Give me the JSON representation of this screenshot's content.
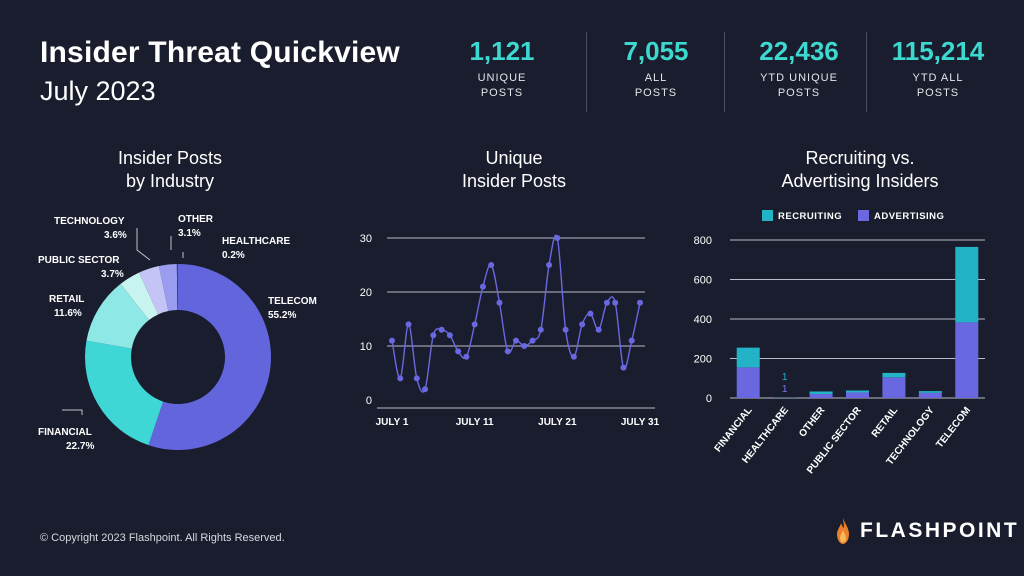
{
  "header": {
    "title": "Insider Threat Quickview",
    "subtitle": "July 2023"
  },
  "stats": [
    {
      "value": "1,121",
      "label1": "UNIQUE",
      "label2": "POSTS"
    },
    {
      "value": "7,055",
      "label1": "ALL",
      "label2": "POSTS"
    },
    {
      "value": "22,436",
      "label1": "YTD UNIQUE",
      "label2": "POSTS"
    },
    {
      "value": "115,214",
      "label1": "YTD ALL",
      "label2": "POSTS"
    }
  ],
  "panels": {
    "industry": {
      "title1": "Insider Posts",
      "title2": "by Industry"
    },
    "unique": {
      "title1": "Unique",
      "title2": "Insider Posts"
    },
    "recruit": {
      "title1": "Recruiting vs.",
      "title2": "Advertising Insiders"
    }
  },
  "colors": {
    "accent": "#3dd9d0",
    "background": "#1a1d2e",
    "series": "#6a68e0",
    "recruiting": "#22b3c7"
  },
  "chart_data": [
    {
      "type": "pie",
      "title": "Insider Posts by Industry",
      "donut": true,
      "slices": [
        {
          "label": "TELECOM",
          "pct_label": "55.2%",
          "value": 55.2,
          "color": "#6265dc"
        },
        {
          "label": "FINANCIAL",
          "pct_label": "22.7%",
          "value": 22.7,
          "color": "#3fd6d6"
        },
        {
          "label": "RETAIL",
          "pct_label": "11.6%",
          "value": 11.6,
          "color": "#8ee8e6"
        },
        {
          "label": "PUBLIC SECTOR",
          "pct_label": "3.7%",
          "value": 3.7,
          "color": "#c8f4f0"
        },
        {
          "label": "TECHNOLOGY",
          "pct_label": "3.6%",
          "value": 3.6,
          "color": "#c4c4f6"
        },
        {
          "label": "OTHER",
          "pct_label": "3.1%",
          "value": 3.1,
          "color": "#9a9cf0"
        },
        {
          "label": "HEALTHCARE",
          "pct_label": "0.2%",
          "value": 0.2,
          "color": "#3a3c9a"
        }
      ]
    },
    {
      "type": "line",
      "title": "Unique Insider Posts",
      "x": [
        "1",
        "2",
        "3",
        "4",
        "5",
        "6",
        "7",
        "8",
        "9",
        "10",
        "11",
        "12",
        "13",
        "14",
        "15",
        "16",
        "17",
        "18",
        "19",
        "20",
        "21",
        "22",
        "23",
        "24",
        "25",
        "26",
        "27",
        "28",
        "29",
        "30",
        "31"
      ],
      "xticks": [
        "JULY 1",
        "JULY 11",
        "JULY 21",
        "JULY 31"
      ],
      "xtick_days": [
        1,
        11,
        21,
        31
      ],
      "values": [
        11,
        4,
        14,
        4,
        2,
        12,
        13,
        12,
        9,
        8,
        14,
        21,
        25,
        18,
        9,
        11,
        10,
        11,
        13,
        25,
        30,
        13,
        8,
        14,
        16,
        13,
        18,
        18,
        6,
        11,
        18
      ],
      "yticks": [
        0,
        10,
        20,
        30
      ],
      "ylim": [
        0,
        30
      ],
      "grid": true,
      "color": "#6a68e0"
    },
    {
      "type": "bar",
      "stacked": true,
      "title": "Recruiting vs. Advertising Insiders",
      "categories": [
        "FINANCIAL",
        "HEALTHCARE",
        "OTHER",
        "PUBLIC SECTOR",
        "RETAIL",
        "TECHNOLOGY",
        "TELECOM"
      ],
      "series": [
        {
          "name": "ADVERTISING",
          "color": "#6a68e0",
          "values": [
            155,
            1,
            20,
            28,
            105,
            26,
            383
          ]
        },
        {
          "name": "RECRUITING",
          "color": "#22b3c7",
          "values": [
            100,
            1,
            13,
            10,
            22,
            9,
            382
          ]
        }
      ],
      "legend": [
        {
          "name": "RECRUITING",
          "color": "#22b3c7"
        },
        {
          "name": "ADVERTISING",
          "color": "#6a68e0"
        }
      ],
      "data_labels": {
        "HEALTHCARE": {
          "RECRUITING": "1",
          "ADVERTISING": "1"
        }
      },
      "yticks": [
        0,
        200,
        400,
        600,
        800
      ],
      "ylim": [
        0,
        800
      ],
      "legend_position": "top"
    }
  ],
  "footer": {
    "copyright": "© Copyright 2023 Flashpoint. All Rights Reserved.",
    "brand": "FLASHPOINT"
  }
}
